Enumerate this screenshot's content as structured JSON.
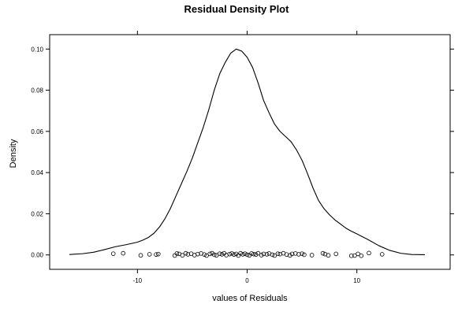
{
  "chart_data": {
    "type": "line",
    "title": "Residual Density Plot",
    "xlabel": "values of Residuals",
    "ylabel": "Density",
    "xlim": [
      -18,
      18.5
    ],
    "ylim": [
      -0.007,
      0.107
    ],
    "x_ticks": [
      -10,
      0,
      10
    ],
    "x_tick_labels": [
      "-10",
      "0",
      "10"
    ],
    "y_ticks": [
      0.0,
      0.02,
      0.04,
      0.06,
      0.08,
      0.1
    ],
    "y_tick_labels": [
      "0.00",
      "0.02",
      "0.04",
      "0.06",
      "0.08",
      "0.10"
    ],
    "grid": false,
    "legend": "none",
    "colors": {
      "line": "#000000",
      "points": "#000000",
      "frame": "#000000"
    },
    "series": [
      {
        "type": "line",
        "x": [
          -16.2,
          -15,
          -14,
          -13,
          -12,
          -11,
          -10,
          -9.5,
          -9,
          -8.5,
          -8,
          -7.5,
          -7,
          -6.5,
          -6,
          -5.5,
          -5,
          -4.5,
          -4,
          -3.5,
          -3,
          -2.5,
          -2,
          -1.5,
          -1,
          -0.5,
          0,
          0.5,
          1,
          1.5,
          2,
          2.5,
          3,
          3.5,
          4,
          4.5,
          5,
          5.5,
          6,
          6.5,
          7,
          7.5,
          8,
          8.5,
          9,
          9.5,
          10,
          11,
          12,
          13,
          14,
          15,
          16.2
        ],
        "y": [
          0.0002,
          0.0006,
          0.0013,
          0.0026,
          0.004,
          0.005,
          0.0062,
          0.0072,
          0.0085,
          0.0105,
          0.0135,
          0.0175,
          0.0225,
          0.0285,
          0.0345,
          0.0405,
          0.047,
          0.0545,
          0.062,
          0.0705,
          0.08,
          0.088,
          0.0935,
          0.098,
          0.1,
          0.099,
          0.096,
          0.091,
          0.0835,
          0.075,
          0.069,
          0.0635,
          0.06,
          0.0575,
          0.055,
          0.051,
          0.046,
          0.0395,
          0.0325,
          0.0265,
          0.0225,
          0.0195,
          0.017,
          0.015,
          0.013,
          0.0115,
          0.0102,
          0.0075,
          0.0045,
          0.0022,
          0.0008,
          0.0002,
          0.0001
        ]
      },
      {
        "type": "scatter",
        "x": [
          -12.2,
          -11.3,
          -9.7,
          -8.9,
          -8.3,
          -8.1,
          -6.6,
          -6.4,
          -6.2,
          -5.9,
          -5.6,
          -5.4,
          -5.1,
          -4.8,
          -4.5,
          -4.2,
          -3.9,
          -3.7,
          -3.4,
          -3.2,
          -3.0,
          -2.8,
          -2.5,
          -2.3,
          -2.1,
          -1.9,
          -1.6,
          -1.4,
          -1.2,
          -1.0,
          -0.8,
          -0.6,
          -0.4,
          -0.2,
          0.0,
          0.2,
          0.4,
          0.6,
          0.8,
          1.0,
          1.3,
          1.5,
          1.8,
          2.0,
          2.3,
          2.5,
          2.8,
          3.0,
          3.3,
          3.6,
          3.9,
          4.1,
          4.4,
          4.7,
          5.0,
          5.2,
          5.9,
          6.9,
          7.1,
          7.4,
          8.1,
          9.5,
          9.8,
          10.1,
          10.4,
          11.1,
          12.3
        ],
        "y": [
          0.0006,
          0.0008,
          -0.0002,
          0.0003,
          0.0002,
          0.0004,
          -0.0003,
          0.0007,
          0.0005,
          -0.0002,
          0.0008,
          0.0003,
          0.0006,
          -0.0001,
          0.0004,
          0.0007,
          0.0002,
          -0.0003,
          0.0005,
          0.0008,
          0.0001,
          -0.0002,
          0.0006,
          0.0003,
          0.0008,
          -0.0001,
          0.0004,
          0.0007,
          0.0002,
          0.0005,
          -0.0003,
          0.0008,
          0.0003,
          0.0006,
          0.0001,
          -0.0002,
          0.0007,
          0.0004,
          0.0002,
          0.0008,
          -0.0001,
          0.0005,
          0.0003,
          0.0007,
          0.0001,
          -0.0003,
          0.0006,
          0.0004,
          0.0008,
          0.0002,
          -0.0002,
          0.0005,
          0.0007,
          0.0003,
          0.0006,
          0.0001,
          -0.0001,
          0.0008,
          0.0004,
          -0.0002,
          0.0005,
          -0.0004,
          -0.0003,
          0.0005,
          -0.0004,
          0.0009,
          0.0003
        ]
      }
    ]
  }
}
